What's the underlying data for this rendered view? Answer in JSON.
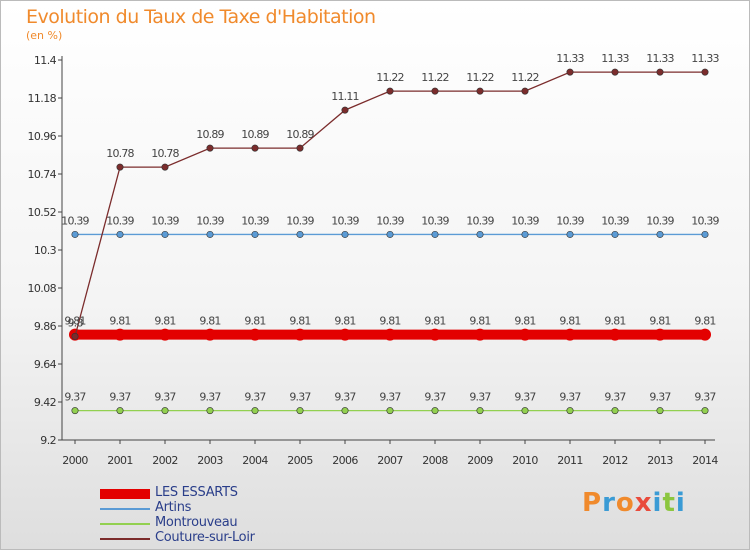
{
  "chart_data": {
    "type": "line",
    "title": "Evolution du Taux de Taxe d'Habitation",
    "subtitle": "(en %)",
    "categories": [
      "2000",
      "2001",
      "2002",
      "2003",
      "2004",
      "2005",
      "2006",
      "2007",
      "2008",
      "2009",
      "2010",
      "2011",
      "2012",
      "2013",
      "2014"
    ],
    "ylim": [
      9.2,
      11.4
    ],
    "yticks": [
      "9.2",
      "9.42",
      "9.64",
      "9.86",
      "10.08",
      "10.3",
      "10.52",
      "10.74",
      "10.96",
      "11.18",
      "11.4"
    ],
    "grid": false,
    "legend_position": "bottom-left",
    "series": [
      {
        "name": "LES ESSARTS",
        "color": "#e30000",
        "labels": [
          "9.81",
          "9.81",
          "9.81",
          "9.81",
          "9.81",
          "9.81",
          "9.81",
          "9.81",
          "9.81",
          "9.81",
          "9.81",
          "9.81",
          "9.81",
          "9.81",
          "9.81"
        ],
        "values": [
          9.81,
          9.81,
          9.81,
          9.81,
          9.81,
          9.81,
          9.81,
          9.81,
          9.81,
          9.81,
          9.81,
          9.81,
          9.81,
          9.81,
          9.81
        ]
      },
      {
        "name": "Artins",
        "color": "#5b9bd5",
        "labels": [
          "10.39",
          "10.39",
          "10.39",
          "10.39",
          "10.39",
          "10.39",
          "10.39",
          "10.39",
          "10.39",
          "10.39",
          "10.39",
          "10.39",
          "10.39",
          "10.39",
          "10.39"
        ],
        "values": [
          10.39,
          10.39,
          10.39,
          10.39,
          10.39,
          10.39,
          10.39,
          10.39,
          10.39,
          10.39,
          10.39,
          10.39,
          10.39,
          10.39,
          10.39
        ]
      },
      {
        "name": "Montrouveau",
        "color": "#92d050",
        "labels": [
          "9.37",
          "9.37",
          "9.37",
          "9.37",
          "9.37",
          "9.37",
          "9.37",
          "9.37",
          "9.37",
          "9.37",
          "9.37",
          "9.37",
          "9.37",
          "9.37",
          "9.37"
        ],
        "values": [
          9.37,
          9.37,
          9.37,
          9.37,
          9.37,
          9.37,
          9.37,
          9.37,
          9.37,
          9.37,
          9.37,
          9.37,
          9.37,
          9.37,
          9.37
        ]
      },
      {
        "name": "Couture-sur-Loir",
        "color": "#7b2c2c",
        "labels": [
          "9.8",
          "10.78",
          "10.78",
          "10.89",
          "10.89",
          "10.89",
          "11.11",
          "11.22",
          "11.22",
          "11.22",
          "11.22",
          "11.33",
          "11.33",
          "11.33",
          "11.33"
        ],
        "values": [
          9.8,
          10.78,
          10.78,
          10.89,
          10.89,
          10.89,
          11.11,
          11.22,
          11.22,
          11.22,
          11.22,
          11.33,
          11.33,
          11.33,
          11.33
        ]
      }
    ]
  },
  "logo": {
    "text": "Proxiti",
    "letters": [
      "P",
      "r",
      "o",
      "x",
      "i",
      "t",
      "i"
    ],
    "colors": [
      "#f08a2c",
      "#3a9bd5",
      "#f08a2c",
      "#e94b3c",
      "#3a9bd5",
      "#8cc63f",
      "#3a9bd5"
    ]
  }
}
